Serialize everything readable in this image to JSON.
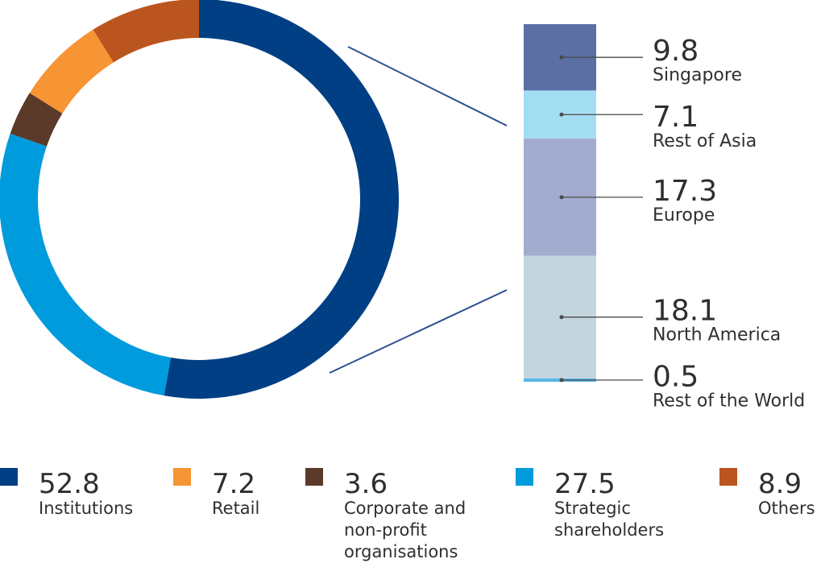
{
  "chart_data": [
    {
      "type": "pie",
      "variant": "donut",
      "start_angle_deg": 0,
      "direction": "clockwise",
      "slices": [
        {
          "value": "52.8",
          "label": "Institutions",
          "color": "#003f84"
        },
        {
          "value": "27.5",
          "label": "Strategic shareholders",
          "color": "#009bdc"
        },
        {
          "value": "3.6",
          "label": "Corporate and non-profit organisations",
          "color": "#5b3a2a"
        },
        {
          "value": "7.2",
          "label": "Retail",
          "color": "#f79433"
        },
        {
          "value": "8.9",
          "label": "Others",
          "color": "#bb551f"
        }
      ]
    },
    {
      "type": "bar",
      "variant": "stacked-column",
      "breakdown_of": "Institutions",
      "segments": [
        {
          "value": "9.8",
          "label": "Singapore",
          "color": "#5b6fa5"
        },
        {
          "value": "7.1",
          "label": "Rest of Asia",
          "color": "#a3ddf2"
        },
        {
          "value": "17.3",
          "label": "Europe",
          "color": "#a3acce"
        },
        {
          "value": "18.1",
          "label": "North America",
          "color": "#c3d6df"
        },
        {
          "value": "0.5",
          "label": "Rest of the World",
          "color": "#5cb5e6"
        }
      ]
    }
  ],
  "legend": {
    "items": [
      {
        "value": "52.8",
        "lines": [
          "Institutions"
        ],
        "color": "#003f84"
      },
      {
        "value": "7.2",
        "lines": [
          "Retail"
        ],
        "color": "#f79433"
      },
      {
        "value": "3.6",
        "lines": [
          "Corporate and",
          "non-profit",
          "organisations"
        ],
        "color": "#5b3a2a"
      },
      {
        "value": "27.5",
        "lines": [
          "Strategic",
          "shareholders"
        ],
        "color": "#009bdc"
      },
      {
        "value": "8.9",
        "lines": [
          "Others"
        ],
        "color": "#bb551f"
      }
    ]
  },
  "style": {
    "connector_color": "#2b4f8f",
    "leader_color": "#4a4a4a"
  }
}
